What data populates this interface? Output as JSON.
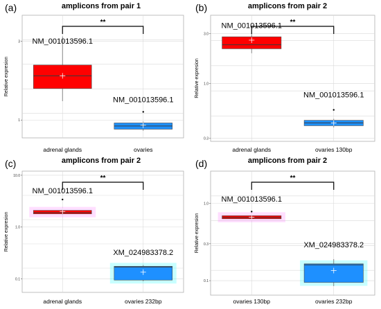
{
  "chart_data": [
    {
      "type": "box",
      "panel_label": "(a)",
      "title": "amplicons from pair 1",
      "ylabel": "Relative expresion",
      "y_scale": "log",
      "ylim": [
        0.78,
        4.3
      ],
      "y_ticks": [
        {
          "value": 3,
          "label": "3"
        },
        {
          "value": 1,
          "label": "1"
        }
      ],
      "categories": [
        "adrenal glands",
        "ovaries"
      ],
      "boxes": [
        {
          "category": "adrenal glands",
          "color": "#ff0000",
          "highlight": "",
          "whisker_low": 1.3,
          "q1": 1.55,
          "median": 1.85,
          "q3": 2.15,
          "whisker_high": 3.2,
          "mean": 1.85,
          "outliers": []
        },
        {
          "category": "ovaries",
          "color": "#1e90ff",
          "highlight": "",
          "whisker_low": 0.86,
          "q1": 0.88,
          "median": 0.92,
          "q3": 0.96,
          "whisker_high": 0.98,
          "mean": 0.93,
          "outliers": [
            1.12
          ]
        }
      ],
      "annotations": [
        {
          "text": "NM_001013596.1",
          "category": "adrenal glands",
          "y": 2.9
        },
        {
          "text": "NM_001013596.1",
          "category": "ovaries",
          "y": 1.28
        }
      ],
      "significance": "**"
    },
    {
      "type": "box",
      "panel_label": "(b)",
      "title": "amplicons from pair 2",
      "ylabel": "Relative expresion",
      "y_scale": "log",
      "ylim": [
        0.28,
        4.5
      ],
      "y_ticks": [
        {
          "value": 3.0,
          "label": "3.0"
        },
        {
          "value": 1.0,
          "label": "1.0"
        },
        {
          "value": 0.3,
          "label": "0.3"
        }
      ],
      "categories": [
        "adrenal glands",
        "ovaries 130bp"
      ],
      "boxes": [
        {
          "category": "adrenal glands",
          "color": "#ff0000",
          "highlight": "",
          "whisker_low": 1.95,
          "q1": 2.15,
          "median": 2.35,
          "q3": 2.8,
          "whisker_high": 3.05,
          "mean": 2.6,
          "outliers": []
        },
        {
          "category": "ovaries 130bp",
          "color": "#1e90ff",
          "highlight": "",
          "whisker_low": 0.38,
          "q1": 0.395,
          "median": 0.42,
          "q3": 0.445,
          "whisker_high": 0.46,
          "mean": 0.42,
          "outliers": [
            0.56
          ]
        }
      ],
      "annotations": [
        {
          "text": "NM_001013596.1",
          "category": "adrenal glands",
          "y": 3.4
        },
        {
          "text": "NM_001013596.1",
          "category": "ovaries 130bp",
          "y": 0.74
        }
      ],
      "significance": "**"
    },
    {
      "type": "box",
      "panel_label": "(c)",
      "title": "amplicons from pair 2",
      "ylabel": "Relative expresion",
      "y_scale": "log",
      "ylim": [
        0.055,
        12
      ],
      "y_ticks": [
        {
          "value": 10.0,
          "label": "10.0"
        },
        {
          "value": 1.0,
          "label": "1.0"
        },
        {
          "value": 0.1,
          "label": "0.1"
        }
      ],
      "categories": [
        "adrenal glands",
        "ovaries 232bp"
      ],
      "boxes": [
        {
          "category": "adrenal glands",
          "color": "#ff0000",
          "highlight": "#ff69ff",
          "whisker_low": 1.75,
          "q1": 1.8,
          "median": 1.9,
          "q3": 2.1,
          "whisker_high": 2.2,
          "mean": 2.0,
          "outliers": [
            3.4
          ]
        },
        {
          "category": "ovaries 232bp",
          "color": "#1e90ff",
          "highlight": "#00ffff",
          "whisker_low": 0.09,
          "q1": 0.095,
          "median": 0.17,
          "q3": 0.175,
          "whisker_high": 0.185,
          "mean": 0.135,
          "outliers": []
        }
      ],
      "annotations": [
        {
          "text": "NM_001013596.1",
          "category": "adrenal glands",
          "y": 4.5
        },
        {
          "text": "XM_024983378.2",
          "category": "ovaries 232bp",
          "y": 0.29
        }
      ],
      "significance": "**"
    },
    {
      "type": "box",
      "panel_label": "(d)",
      "title": "amplicons from pair 2",
      "ylabel": "Relative expresion",
      "y_scale": "log",
      "ylim": [
        0.065,
        2.6
      ],
      "y_ticks": [
        {
          "value": 1.0,
          "label": "1.0"
        },
        {
          "value": 0.3,
          "label": "0.3"
        },
        {
          "value": 0.1,
          "label": "0.1"
        }
      ],
      "categories": [
        "ovaries 130bp",
        "ovaries 232bp"
      ],
      "boxes": [
        {
          "category": "ovaries 130bp",
          "color": "#ff0000",
          "highlight": "#ff69ff",
          "whisker_low": 0.62,
          "q1": 0.63,
          "median": 0.655,
          "q3": 0.69,
          "whisker_high": 0.71,
          "mean": 0.66,
          "outliers": [
            0.78
          ]
        },
        {
          "category": "ovaries 232bp",
          "color": "#1e90ff",
          "highlight": "#00ffff",
          "whisker_low": 0.085,
          "q1": 0.095,
          "median": 0.16,
          "q3": 0.165,
          "whisker_high": 0.19,
          "mean": 0.135,
          "outliers": []
        }
      ],
      "annotations": [
        {
          "text": "NM_001013596.1",
          "category": "ovaries 130bp",
          "y": 1.05
        },
        {
          "text": "XM_024983378.2",
          "category": "ovaries 232bp",
          "y": 0.27
        }
      ],
      "significance": "**"
    }
  ]
}
